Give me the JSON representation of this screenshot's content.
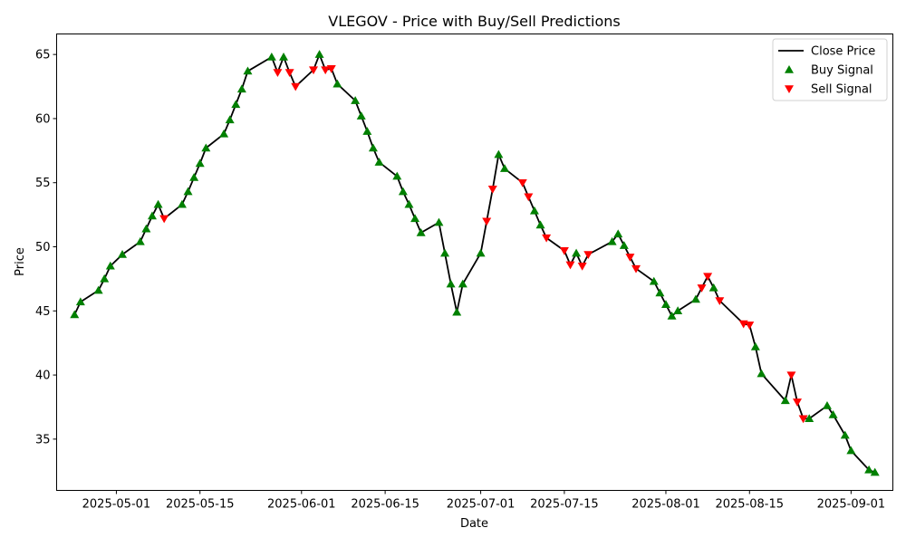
{
  "chart_data": {
    "type": "line",
    "title": "VLEGOV - Price with Buy/Sell Predictions",
    "xlabel": "Date",
    "ylabel": "Price",
    "xlim": [
      "2025-04-21",
      "2025-09-08"
    ],
    "ylim": [
      31.0,
      66.6
    ],
    "x_ticks": [
      "2025-05-01",
      "2025-05-15",
      "2025-06-01",
      "2025-06-15",
      "2025-07-01",
      "2025-07-15",
      "2025-08-01",
      "2025-08-15",
      "2025-09-01"
    ],
    "y_ticks": [
      35,
      40,
      45,
      50,
      55,
      60,
      65
    ],
    "grid": false,
    "legend": {
      "position": "top-right",
      "entries": [
        {
          "label": "Close Price",
          "kind": "line"
        },
        {
          "label": "Buy Signal",
          "kind": "triangle-up"
        },
        {
          "label": "Sell Signal",
          "kind": "triangle-down"
        }
      ]
    },
    "colors": {
      "line": "#000000",
      "buy": "#008000",
      "sell": "#ff0000"
    },
    "series": [
      {
        "name": "Close Price",
        "points": [
          [
            "2025-04-24",
            44.7,
            "buy"
          ],
          [
            "2025-04-25",
            45.7,
            "buy"
          ],
          [
            "2025-04-28",
            46.6,
            "buy"
          ],
          [
            "2025-04-29",
            47.5,
            "buy"
          ],
          [
            "2025-04-30",
            48.5,
            "buy"
          ],
          [
            "2025-05-02",
            49.4,
            "buy"
          ],
          [
            "2025-05-05",
            50.4,
            "buy"
          ],
          [
            "2025-05-06",
            51.4,
            "buy"
          ],
          [
            "2025-05-07",
            52.4,
            "buy"
          ],
          [
            "2025-05-08",
            53.3,
            "buy"
          ],
          [
            "2025-05-09",
            52.2,
            "sell"
          ],
          [
            "2025-05-12",
            53.3,
            "buy"
          ],
          [
            "2025-05-13",
            54.3,
            "buy"
          ],
          [
            "2025-05-14",
            55.4,
            "buy"
          ],
          [
            "2025-05-15",
            56.5,
            "buy"
          ],
          [
            "2025-05-16",
            57.7,
            "buy"
          ],
          [
            "2025-05-19",
            58.8,
            "buy"
          ],
          [
            "2025-05-20",
            59.9,
            "buy"
          ],
          [
            "2025-05-21",
            61.1,
            "buy"
          ],
          [
            "2025-05-22",
            62.3,
            "buy"
          ],
          [
            "2025-05-23",
            63.7,
            "buy"
          ],
          [
            "2025-05-27",
            64.8,
            "buy"
          ],
          [
            "2025-05-28",
            63.6,
            "sell"
          ],
          [
            "2025-05-29",
            64.8,
            "buy"
          ],
          [
            "2025-05-30",
            63.6,
            "sell"
          ],
          [
            "2025-05-31",
            62.5,
            "sell"
          ],
          [
            "2025-06-03",
            63.8,
            "sell"
          ],
          [
            "2025-06-04",
            65.0,
            "buy"
          ],
          [
            "2025-06-05",
            63.8,
            "sell"
          ],
          [
            "2025-06-06",
            63.9,
            "sell"
          ],
          [
            "2025-06-07",
            62.7,
            "buy"
          ],
          [
            "2025-06-10",
            61.4,
            "buy"
          ],
          [
            "2025-06-11",
            60.2,
            "buy"
          ],
          [
            "2025-06-12",
            59.0,
            "buy"
          ],
          [
            "2025-06-13",
            57.7,
            "buy"
          ],
          [
            "2025-06-14",
            56.6,
            "buy"
          ],
          [
            "2025-06-17",
            55.5,
            "buy"
          ],
          [
            "2025-06-18",
            54.3,
            "buy"
          ],
          [
            "2025-06-19",
            53.3,
            "buy"
          ],
          [
            "2025-06-20",
            52.2,
            "buy"
          ],
          [
            "2025-06-21",
            51.1,
            "buy"
          ],
          [
            "2025-06-24",
            51.9,
            "buy"
          ],
          [
            "2025-06-25",
            49.5,
            "buy"
          ],
          [
            "2025-06-26",
            47.1,
            "buy"
          ],
          [
            "2025-06-27",
            44.9,
            "buy"
          ],
          [
            "2025-06-28",
            47.1,
            "buy"
          ],
          [
            "2025-07-01",
            49.5,
            "buy"
          ],
          [
            "2025-07-02",
            52.0,
            "sell"
          ],
          [
            "2025-07-03",
            54.5,
            "sell"
          ],
          [
            "2025-07-04",
            57.2,
            "buy"
          ],
          [
            "2025-07-05",
            56.1,
            "buy"
          ],
          [
            "2025-07-08",
            55.0,
            "sell"
          ],
          [
            "2025-07-09",
            53.9,
            "sell"
          ],
          [
            "2025-07-10",
            52.8,
            "buy"
          ],
          [
            "2025-07-11",
            51.7,
            "buy"
          ],
          [
            "2025-07-12",
            50.7,
            "sell"
          ],
          [
            "2025-07-15",
            49.7,
            "sell"
          ],
          [
            "2025-07-16",
            48.6,
            "sell"
          ],
          [
            "2025-07-17",
            49.5,
            "buy"
          ],
          [
            "2025-07-18",
            48.5,
            "sell"
          ],
          [
            "2025-07-19",
            49.4,
            "sell"
          ],
          [
            "2025-07-23",
            50.4,
            "buy"
          ],
          [
            "2025-07-24",
            51.0,
            "buy"
          ],
          [
            "2025-07-25",
            50.1,
            "buy"
          ],
          [
            "2025-07-26",
            49.2,
            "sell"
          ],
          [
            "2025-07-27",
            48.3,
            "sell"
          ],
          [
            "2025-07-30",
            47.3,
            "buy"
          ],
          [
            "2025-07-31",
            46.4,
            "buy"
          ],
          [
            "2025-08-01",
            45.5,
            "buy"
          ],
          [
            "2025-08-02",
            44.6,
            "buy"
          ],
          [
            "2025-08-03",
            45.0,
            "buy"
          ],
          [
            "2025-08-06",
            45.9,
            "buy"
          ],
          [
            "2025-08-07",
            46.8,
            "sell"
          ],
          [
            "2025-08-08",
            47.7,
            "sell"
          ],
          [
            "2025-08-09",
            46.8,
            "buy"
          ],
          [
            "2025-08-10",
            45.8,
            "sell"
          ],
          [
            "2025-08-14",
            44.0,
            "sell"
          ],
          [
            "2025-08-15",
            43.9,
            "sell"
          ],
          [
            "2025-08-16",
            42.2,
            "buy"
          ],
          [
            "2025-08-17",
            40.1,
            "buy"
          ],
          [
            "2025-08-21",
            38.0,
            "buy"
          ],
          [
            "2025-08-22",
            40.0,
            "sell"
          ],
          [
            "2025-08-23",
            37.9,
            "sell"
          ],
          [
            "2025-08-24",
            36.6,
            "sell"
          ],
          [
            "2025-08-25",
            36.6,
            "buy"
          ],
          [
            "2025-08-28",
            37.6,
            "buy"
          ],
          [
            "2025-08-29",
            36.9,
            "buy"
          ],
          [
            "2025-08-31",
            35.3,
            "buy"
          ],
          [
            "2025-09-01",
            34.1,
            "buy"
          ],
          [
            "2025-09-04",
            32.6,
            "buy"
          ],
          [
            "2025-09-05",
            32.4,
            "buy"
          ]
        ]
      }
    ]
  }
}
